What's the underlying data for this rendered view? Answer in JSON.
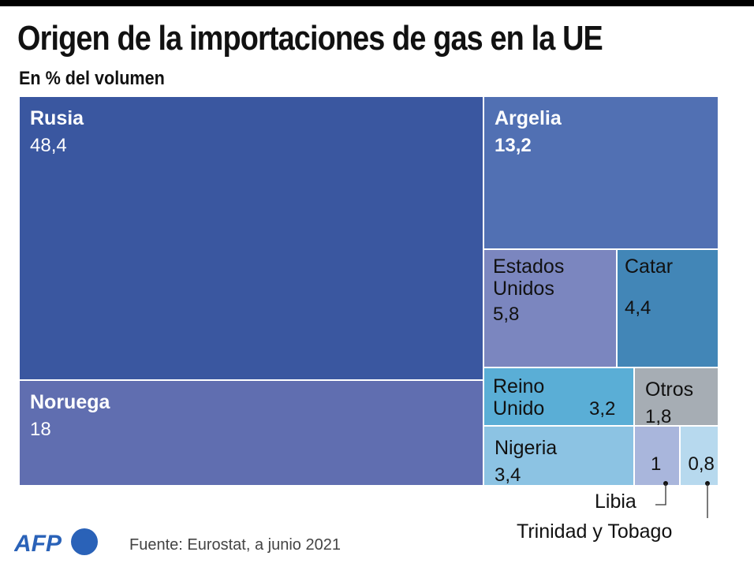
{
  "header": {
    "title": "Origen de la importaciones de gas en la UE",
    "subtitle": "En % del volumen"
  },
  "footer": {
    "source": "Fuente: Eurostat, a junio 2021",
    "logo": "AFP"
  },
  "chart_data": {
    "type": "treemap",
    "title": "Origen de la importaciones de gas en la UE",
    "subtitle": "En % del volumen",
    "unit": "%",
    "items": [
      {
        "name": "Rusia",
        "value": 48.4,
        "label": "48,4",
        "color": "#3a57a0",
        "bold": true
      },
      {
        "name": "Noruega",
        "value": 18,
        "label": "18",
        "color": "#606eb0",
        "bold": true
      },
      {
        "name": "Argelia",
        "value": 13.2,
        "label": "13,2",
        "color": "#5170b3",
        "bold": true
      },
      {
        "name": "Estados Unidos",
        "value": 5.8,
        "label": "5,8",
        "color": "#7b86bf",
        "bold": false
      },
      {
        "name": "Catar",
        "value": 4.4,
        "label": "4,4",
        "color": "#4286b7",
        "bold": false
      },
      {
        "name": "Reino Unido",
        "value": 3.2,
        "label": "3,2",
        "color": "#5aaed6",
        "bold": false
      },
      {
        "name": "Otros",
        "value": 1.8,
        "label": "1,8",
        "color": "#a6adb4",
        "bold": false
      },
      {
        "name": "Nigeria",
        "value": 3.4,
        "label": "3,4",
        "color": "#8cc3e3",
        "bold": false
      },
      {
        "name": "Libia",
        "value": 1,
        "label": "1",
        "color": "#a9b6dc",
        "bold": false
      },
      {
        "name": "Trinidad y Tobago",
        "value": 0.8,
        "label": "0,8",
        "color": "#b7d9ee",
        "bold": false
      }
    ],
    "annotations": [
      "Libia",
      "Trinidad y Tobago"
    ]
  }
}
